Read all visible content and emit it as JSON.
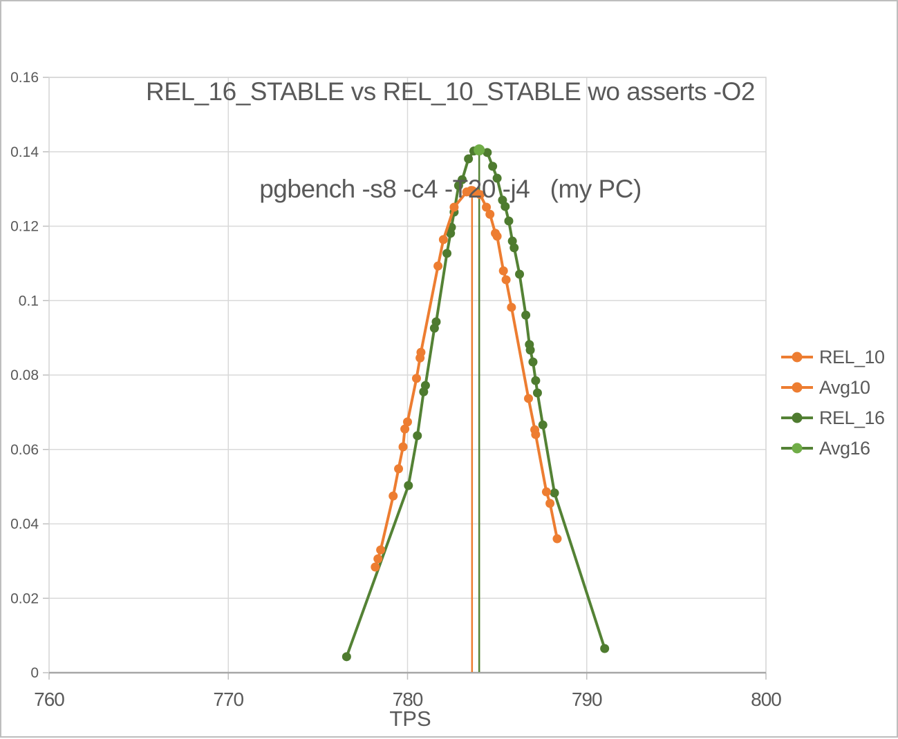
{
  "page": {
    "background": "#ffffff",
    "border_color": "#bdbdbd"
  },
  "chart_data": {
    "type": "line",
    "title": "REL_16_STABLE vs REL_10_STABLE wo asserts -O2",
    "subtitle": "pgbench -s8 -c4 -T20 -j4   (my PC)",
    "xlabel": "TPS",
    "ylabel": "",
    "grid": true,
    "legend_position": "middle-right",
    "text_color": "#595959",
    "grid_color": "#d9d9d9",
    "border_color": "#d3d3d3",
    "axis_color": "#a6a6a6",
    "tick_color": "#bfbfbf",
    "x_axis": {
      "min": 760,
      "max": 800,
      "ticks": [
        760,
        770,
        780,
        790,
        800
      ],
      "tick_labels": [
        "760",
        "770",
        "780",
        "790",
        "800"
      ]
    },
    "y_axis": {
      "min": 0,
      "max": 0.16,
      "ticks": [
        0,
        0.02,
        0.04,
        0.06,
        0.08,
        0.1,
        0.12,
        0.14,
        0.16
      ],
      "tick_labels": [
        "0",
        "0.02",
        "0.04",
        "0.06",
        "0.08",
        "0.1",
        "0.12",
        "0.14",
        "0.16"
      ]
    },
    "series": [
      {
        "name": "REL_10",
        "kind": "scatter-line",
        "z": 2,
        "color": "#ED7D31",
        "marker_color": "#ED7D31",
        "points": [
          [
            778.2,
            0.0284
          ],
          [
            778.35,
            0.0306
          ],
          [
            778.5,
            0.033
          ],
          [
            779.2,
            0.0475
          ],
          [
            779.5,
            0.0548
          ],
          [
            779.75,
            0.0607
          ],
          [
            779.85,
            0.0655
          ],
          [
            780.0,
            0.0674
          ],
          [
            780.5,
            0.0791
          ],
          [
            780.7,
            0.0846
          ],
          [
            780.75,
            0.0861
          ],
          [
            781.7,
            0.1093
          ],
          [
            782.0,
            0.1164
          ],
          [
            782.6,
            0.1251
          ],
          [
            783.3,
            0.1292
          ],
          [
            783.55,
            0.1296
          ],
          [
            783.8,
            0.129
          ],
          [
            784.05,
            0.1285
          ],
          [
            784.4,
            0.1251
          ],
          [
            784.6,
            0.1232
          ],
          [
            784.9,
            0.1181
          ],
          [
            785.0,
            0.1173
          ],
          [
            785.35,
            0.108
          ],
          [
            785.5,
            0.1056
          ],
          [
            785.8,
            0.0982
          ],
          [
            786.75,
            0.0737
          ],
          [
            787.1,
            0.0653
          ],
          [
            787.15,
            0.064
          ],
          [
            787.75,
            0.0486
          ],
          [
            787.95,
            0.0455
          ],
          [
            788.35,
            0.036
          ]
        ]
      },
      {
        "name": "Avg10",
        "kind": "vline",
        "color": "#ED7D31",
        "marker_color": "#ED7D31",
        "x": 783.6,
        "top": 0.1293
      },
      {
        "name": "REL_16",
        "kind": "scatter-line",
        "z": 1,
        "color": "#548235",
        "marker_color": "#4E7B2F",
        "points": [
          [
            776.6,
            0.0043
          ],
          [
            780.05,
            0.0503
          ],
          [
            780.55,
            0.0637
          ],
          [
            780.9,
            0.0755
          ],
          [
            781.0,
            0.0772
          ],
          [
            781.5,
            0.0926
          ],
          [
            781.6,
            0.0943
          ],
          [
            782.2,
            0.1127
          ],
          [
            782.4,
            0.1181
          ],
          [
            782.45,
            0.1197
          ],
          [
            782.6,
            0.1238
          ],
          [
            782.85,
            0.1309
          ],
          [
            783.05,
            0.1325
          ],
          [
            783.4,
            0.1381
          ],
          [
            783.7,
            0.1402
          ],
          [
            784.0,
            0.1405
          ],
          [
            784.45,
            0.1398
          ],
          [
            784.75,
            0.1361
          ],
          [
            785.0,
            0.1329
          ],
          [
            785.3,
            0.127
          ],
          [
            785.45,
            0.1253
          ],
          [
            785.65,
            0.1214
          ],
          [
            785.85,
            0.116
          ],
          [
            785.95,
            0.1142
          ],
          [
            786.25,
            0.1071
          ],
          [
            786.6,
            0.0961
          ],
          [
            786.8,
            0.0882
          ],
          [
            786.85,
            0.0867
          ],
          [
            787.0,
            0.0835
          ],
          [
            787.15,
            0.0785
          ],
          [
            787.25,
            0.0752
          ],
          [
            787.55,
            0.0666
          ],
          [
            788.2,
            0.0483
          ],
          [
            791.0,
            0.0065
          ]
        ]
      },
      {
        "name": "Avg16",
        "kind": "vline",
        "color": "#548235",
        "marker_color": "#70AD47",
        "x": 784.0,
        "top": 0.1405
      }
    ]
  }
}
